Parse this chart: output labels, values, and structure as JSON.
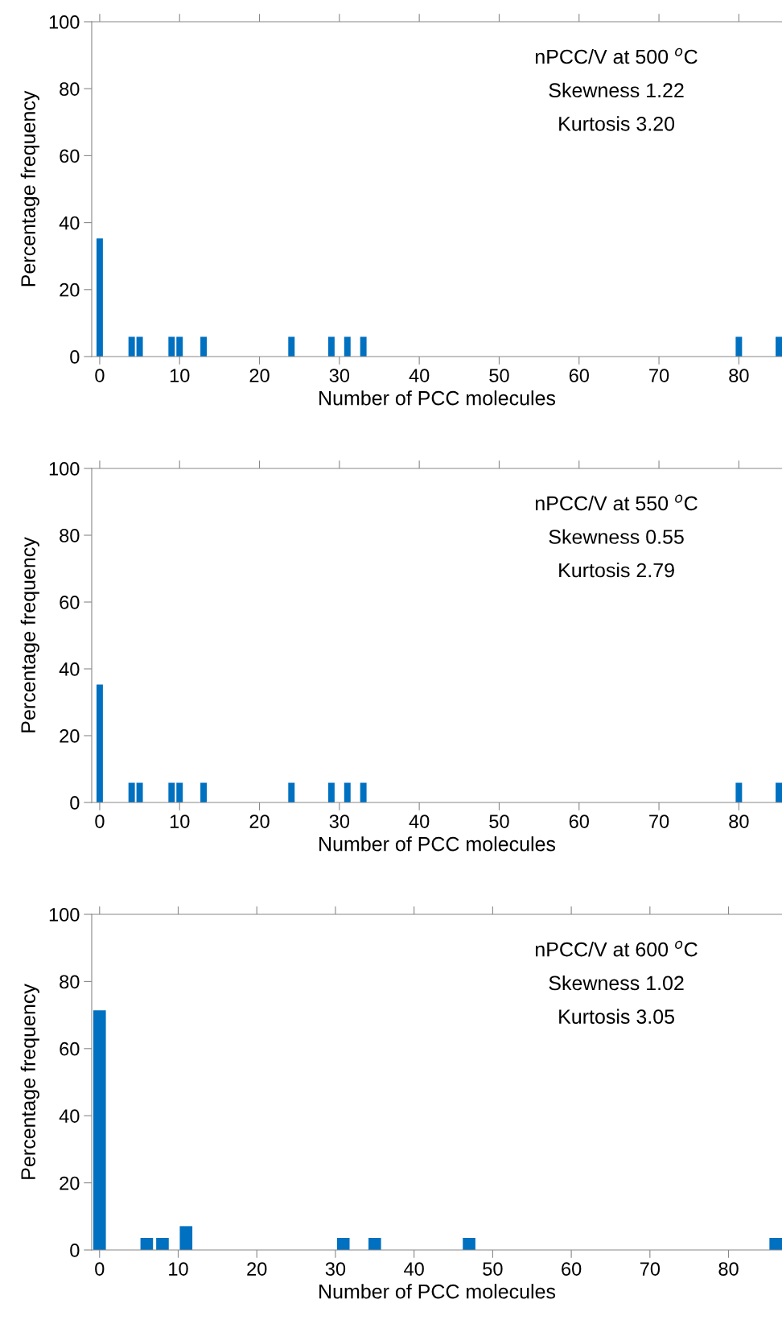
{
  "chart_data": [
    {
      "type": "histogram",
      "xlabel": "Number of PCC molecules",
      "ylabel": "Percentage frequency",
      "annotations": [
        "nPCC/V at 500 $^{o}$C",
        "Skewness 1.22",
        "Kurtosis 3.20"
      ],
      "color": "#0070c0",
      "bins": [
        -0.4,
        0.4,
        3.6,
        4.4,
        4.6,
        5.4,
        8.6,
        9.4,
        9.6,
        10.4,
        12.6,
        13.4,
        23.6,
        24.4,
        28.6,
        29.4,
        30.6,
        31.4,
        32.6,
        33.4,
        79.6,
        80.4,
        84.6,
        85.4
      ],
      "values": [
        35.3,
        0,
        5.9,
        0,
        5.9,
        0,
        5.9,
        0,
        5.9,
        0,
        5.9,
        0,
        5.9,
        0,
        5.9,
        0,
        5.9,
        0,
        5.9,
        0,
        5.9,
        0,
        5.9
      ],
      "xlim": [
        -1,
        85.4
      ],
      "ylim": [
        0,
        100
      ],
      "xticks": [
        0,
        10,
        20,
        30,
        40,
        50,
        60,
        70,
        80
      ],
      "yticks": [
        0,
        20,
        40,
        60,
        80,
        100
      ],
      "grid": false
    },
    {
      "type": "histogram",
      "xlabel": "Number of PCC molecules",
      "ylabel": "Percentage frequency",
      "annotations": [
        "nPCC/V at 550 $^{o}$C",
        "Skewness 0.55",
        "Kurtosis 2.79"
      ],
      "color": "#0070c0",
      "bins": [
        -0.4,
        0.4,
        3.6,
        4.4,
        4.6,
        5.4,
        8.6,
        9.4,
        9.6,
        10.4,
        12.6,
        13.4,
        23.6,
        24.4,
        28.6,
        29.4,
        30.6,
        31.4,
        32.6,
        33.4,
        79.6,
        80.4,
        84.6,
        85.4
      ],
      "values": [
        35.3,
        0,
        5.9,
        0,
        5.9,
        0,
        5.9,
        0,
        5.9,
        0,
        5.9,
        0,
        5.9,
        0,
        5.9,
        0,
        5.9,
        0,
        5.9,
        0,
        5.9,
        0,
        5.9
      ],
      "xlim": [
        -1,
        85.4
      ],
      "ylim": [
        0,
        100
      ],
      "xticks": [
        0,
        10,
        20,
        30,
        40,
        50,
        60,
        70,
        80
      ],
      "yticks": [
        0,
        20,
        40,
        60,
        80,
        100
      ],
      "grid": false
    },
    {
      "type": "histogram",
      "xlabel": "Number of PCC molecules",
      "ylabel": "Percentage frequency",
      "annotations": [
        "nPCC/V at 600 $^{o}$C",
        "Skewness 1.02",
        "Kurtosis 3.05"
      ],
      "color": "#0070c0",
      "bins": [
        -0.8,
        0.8,
        5.2,
        6.8,
        7.2,
        8.8,
        10.2,
        11.8,
        30.2,
        31.8,
        34.2,
        35.8,
        46.2,
        47.8,
        85.2,
        86.8
      ],
      "values": [
        71.4,
        0,
        3.6,
        0,
        3.6,
        0,
        7.1,
        0,
        3.6,
        0,
        3.6,
        0,
        3.6,
        0,
        3.6
      ],
      "xlim": [
        -1,
        86.8
      ],
      "ylim": [
        0,
        100
      ],
      "xticks": [
        0,
        10,
        20,
        30,
        40,
        50,
        60,
        70,
        80
      ],
      "yticks": [
        0,
        20,
        40,
        60,
        80,
        100
      ],
      "grid": false
    }
  ]
}
